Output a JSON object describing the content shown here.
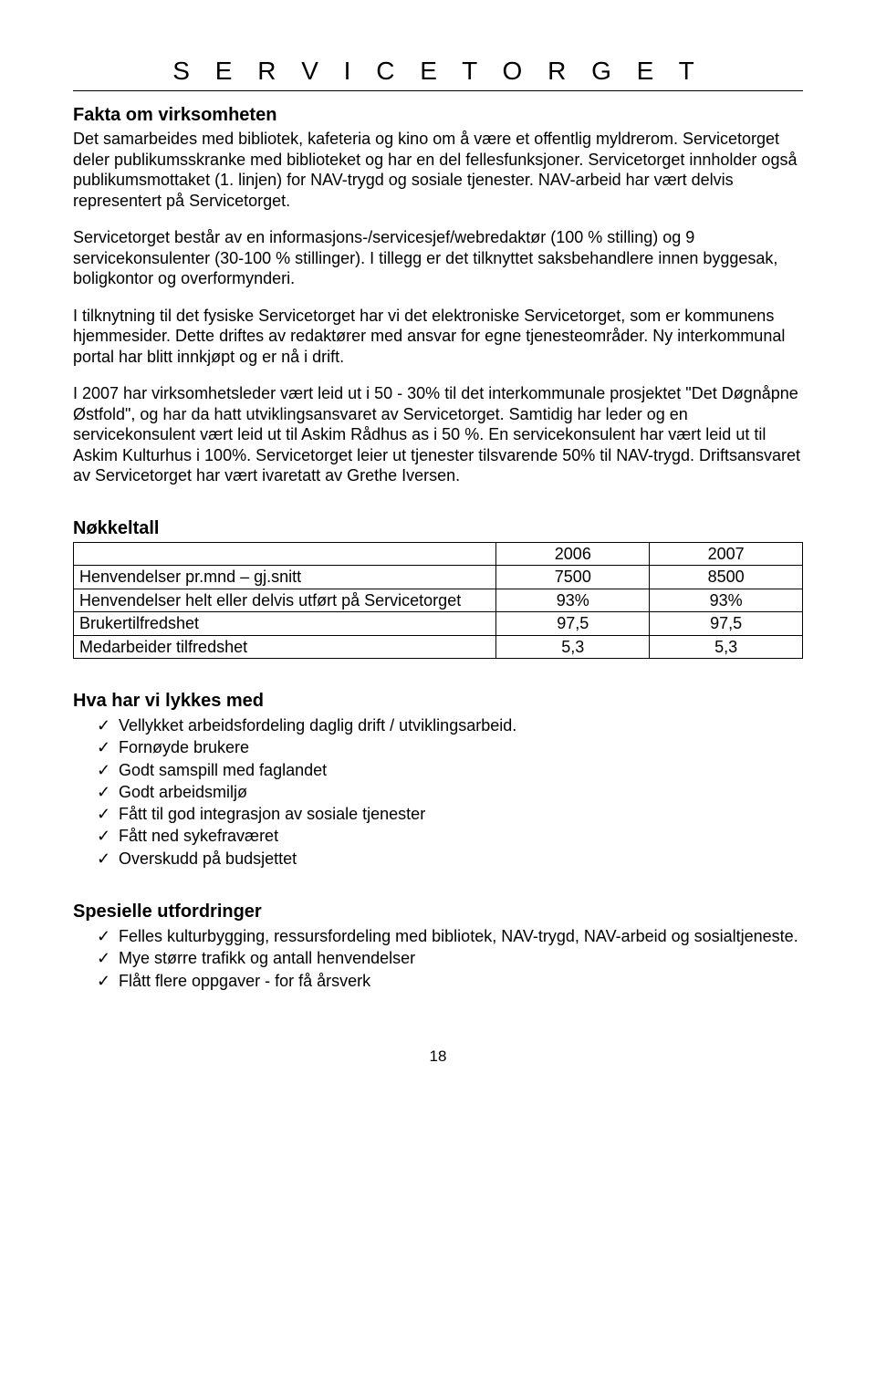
{
  "title": "S E R V I C E T O R G E T",
  "sections": {
    "fakta": {
      "heading": "Fakta om virksomheten",
      "p1": "Det samarbeides med bibliotek, kafeteria og kino om å være et offentlig myldrerom. Servicetorget deler publikumsskranke med biblioteket og har en del fellesfunksjoner. Servicetorget innholder også publikumsmottaket (1. linjen) for NAV-trygd og sosiale tjenester. NAV-arbeid har vært delvis representert på Servicetorget.",
      "p2": "Servicetorget består av en informasjons-/servicesjef/webredaktør (100 % stilling) og 9 servicekonsulenter (30-100 % stillinger). I tillegg er det tilknyttet saksbehandlere innen byggesak,  boligkontor og overformynderi.",
      "p3": "I tilknytning til det fysiske Servicetorget har vi det elektroniske Servicetorget, som er kommunens hjemmesider. Dette driftes av redaktører med ansvar for egne tjenesteområder. Ny interkommunal portal har blitt innkjøpt og er nå i drift.",
      "p4": "I 2007 har virksomhetsleder vært leid ut i 50 - 30%  til det interkommunale prosjektet \"Det Døgnåpne Østfold\", og har da hatt utviklingsansvaret av Servicetorget. Samtidig har leder og en servicekonsulent vært leid ut til Askim Rådhus as i 50 %. En servicekonsulent har vært leid ut til Askim Kulturhus i 100%. Servicetorget leier ut tjenester tilsvarende 50% til NAV-trygd. Driftsansvaret av Servicetorget har vært ivaretatt av Grethe Iversen."
    },
    "nokkeltall": {
      "heading": "Nøkkeltall",
      "columns": [
        "",
        "2006",
        "2007"
      ],
      "rows": [
        [
          "Henvendelser pr.mnd – gj.snitt",
          "7500",
          "8500"
        ],
        [
          "Henvendelser helt eller delvis utført på Servicetorget",
          "93%",
          "93%"
        ],
        [
          "Brukertilfredshet",
          "97,5",
          "97,5"
        ],
        [
          "Medarbeider tilfredshet",
          "5,3",
          "5,3"
        ]
      ]
    },
    "lykkes": {
      "heading": "Hva har vi lykkes med",
      "items": [
        "Vellykket arbeidsfordeling daglig drift / utviklingsarbeid.",
        "Fornøyde brukere",
        "Godt samspill med faglandet",
        "Godt arbeidsmiljø",
        "Fått til god integrasjon av sosiale tjenester",
        "Fått ned sykefraværet",
        "Overskudd på budsjettet"
      ]
    },
    "utfordringer": {
      "heading": "Spesielle utfordringer",
      "items": [
        "Felles kulturbygging, ressursfordeling med bibliotek, NAV-trygd, NAV-arbeid og sosialtjeneste.",
        "Mye større trafikk og antall henvendelser",
        "Flått flere oppgaver - for få årsverk"
      ]
    }
  },
  "page_number": "18"
}
